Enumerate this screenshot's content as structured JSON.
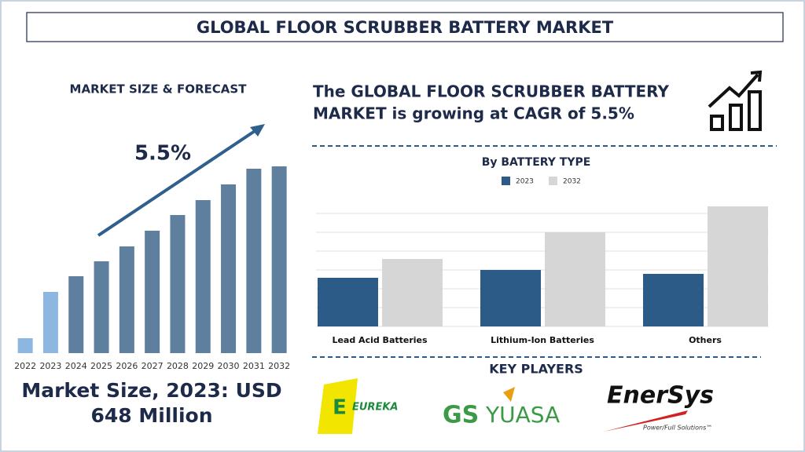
{
  "header": {
    "title": "GLOBAL FLOOR SCRUBBER BATTERY MARKET"
  },
  "forecast": {
    "heading": "MARKET SIZE & FORECAST",
    "cagr_label": "5.5%",
    "market_size_lines": [
      "Market Size, 2023: USD",
      "648 Million"
    ]
  },
  "headline": {
    "lines": [
      "The GLOBAL FLOOR SCRUBBER BATTERY",
      "MARKET is growing at CAGR of 5.5%"
    ]
  },
  "chart_data": [
    {
      "type": "bar",
      "categories": [
        "2022",
        "2023",
        "2024",
        "2025",
        "2026",
        "2027",
        "2028",
        "2029",
        "2030",
        "2031",
        "2032"
      ],
      "values": [
        19,
        78,
        98,
        117,
        136,
        156,
        176,
        195,
        215,
        235,
        238
      ],
      "colors": [
        "#8db7e0",
        "#8db7e0",
        "#5f7f9f",
        "#5f7f9f",
        "#5f7f9f",
        "#5f7f9f",
        "#5f7f9f",
        "#5f7f9f",
        "#5f7f9f",
        "#5f7f9f",
        "#5f7f9f"
      ],
      "ylim": [
        0,
        250
      ]
    },
    {
      "type": "grouped_bar",
      "title": "By BATTERY TYPE",
      "categories": [
        "Lead Acid Batteries",
        "Lithium-Ion Batteries",
        "Others"
      ],
      "series": [
        {
          "name": "2023",
          "color": "#2d5b88",
          "values": [
            62,
            72,
            67
          ]
        },
        {
          "name": "2032",
          "color": "#d6d6d6",
          "values": [
            86,
            120,
            153
          ]
        }
      ],
      "ylim": [
        0,
        170
      ],
      "yticks": [
        0,
        24,
        48,
        72,
        96,
        120,
        144
      ],
      "grid": true
    }
  ],
  "key_players": {
    "heading": "KEY PLAYERS",
    "logos": [
      "EUREKA",
      "GS",
      "YUASA",
      "EnerSys",
      "Power/Full Solutions™"
    ]
  }
}
